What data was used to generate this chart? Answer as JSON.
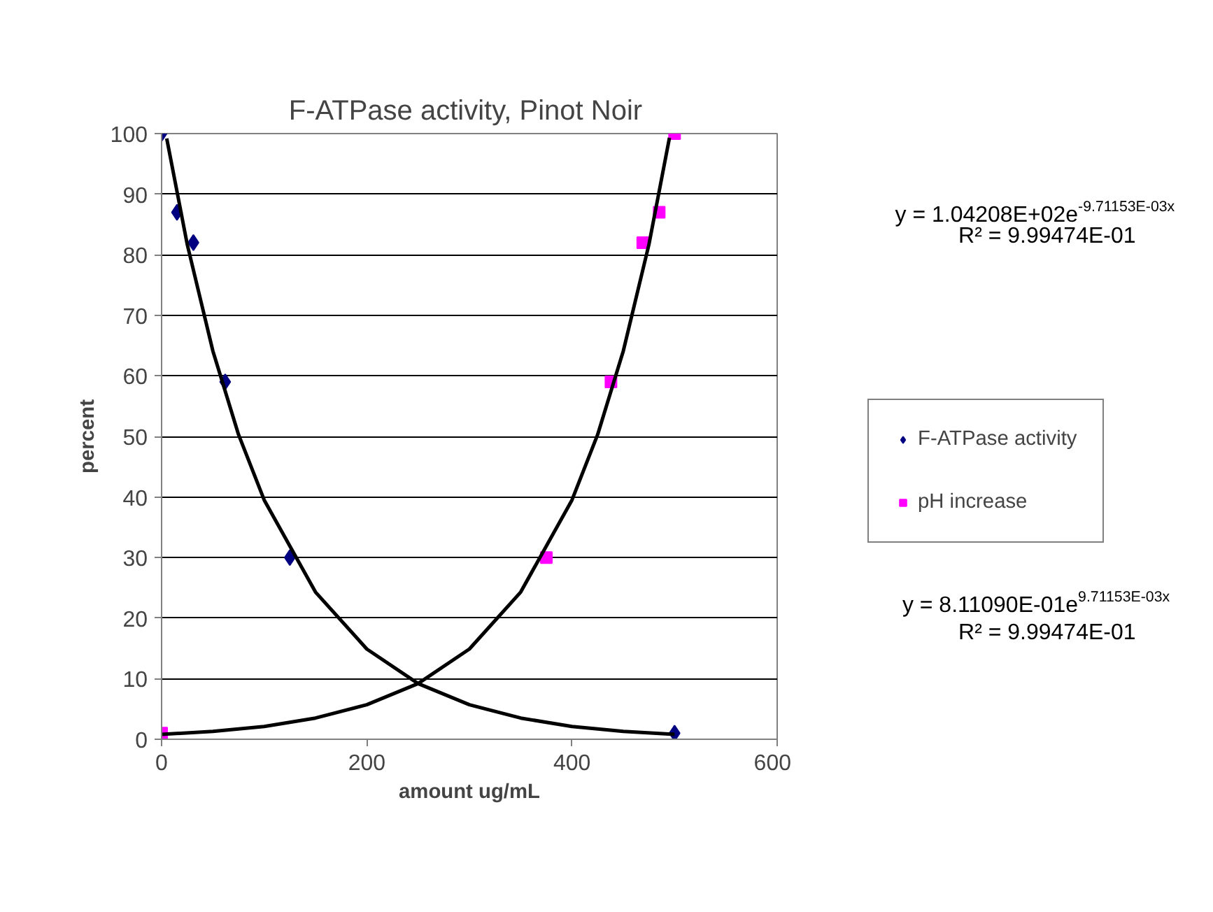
{
  "chart_data": {
    "type": "scatter",
    "title": "F-ATPase activity,  Pinot Noir",
    "xlabel": "amount ug/mL",
    "ylabel": "percent",
    "series": [
      {
        "name": "F-ATPase activity",
        "color": "#000080",
        "marker": "diamond",
        "x": [
          0,
          15,
          31,
          62,
          125,
          500
        ],
        "values": [
          100,
          87,
          82,
          59,
          30,
          1
        ]
      },
      {
        "name": "pH increase",
        "color": "#ff00ff",
        "marker": "square",
        "x": [
          0,
          375,
          438,
          469,
          485,
          500
        ],
        "values": [
          1,
          30,
          59,
          82,
          87,
          100
        ]
      },
      {
        "type": "line",
        "color": "#000000",
        "marker": "none",
        "x": [
          5,
          25,
          50,
          75,
          100,
          150,
          200,
          250,
          300,
          350,
          400,
          450,
          500
        ],
        "values": [
          99.2,
          81.7,
          64.1,
          50.3,
          39.5,
          24.3,
          14.9,
          9.2,
          5.7,
          3.5,
          2.1,
          1.3,
          0.8
        ]
      },
      {
        "type": "line",
        "color": "#000000",
        "marker": "none",
        "x": [
          0,
          50,
          100,
          150,
          200,
          250,
          300,
          350,
          400,
          425,
          450,
          475,
          495
        ],
        "values": [
          0.8,
          1.3,
          2.1,
          3.5,
          5.7,
          9.2,
          14.9,
          24.3,
          39.5,
          50.3,
          64.1,
          81.7,
          99.3
        ]
      }
    ],
    "annotations": [
      "y = 1.04208E+02e$^{-9.71153E-03x}$",
      "R² = 9.99474E-01",
      "y = 8.11090E-01e$^{9.71153E-03x}$",
      "R² = 9.99474E-01"
    ],
    "xlim": [
      0,
      600
    ],
    "ylim": [
      0,
      100
    ],
    "xticks": [
      0,
      200,
      400,
      600
    ],
    "yticks": [
      0,
      10,
      20,
      30,
      40,
      50,
      60,
      70,
      80,
      90,
      100
    ],
    "grid": "y",
    "legend": "right",
    "line_style": "solid"
  }
}
